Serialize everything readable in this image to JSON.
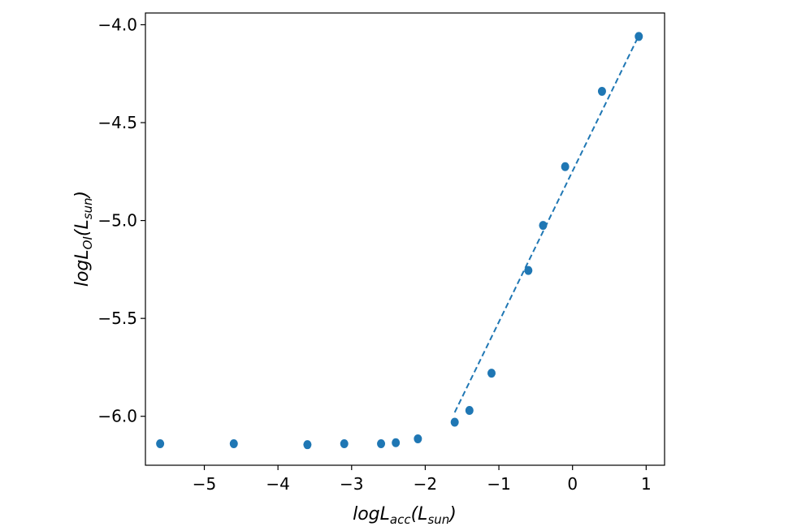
{
  "chart_data": {
    "type": "scatter",
    "xlabel": {
      "base": "logL",
      "sub": "acc",
      "tail": "(L",
      "sub2": "sun",
      "end": ")"
    },
    "ylabel": {
      "base": "logL",
      "sub": "OI",
      "tail": "(L",
      "sub2": "sun",
      "end": ")"
    },
    "xlim": [
      -5.8,
      1.25
    ],
    "ylim": [
      -6.25,
      -3.94
    ],
    "xticks": [
      -5,
      -4,
      -3,
      -2,
      -1,
      0,
      1
    ],
    "xtick_labels": [
      "−5",
      "−4",
      "−3",
      "−2",
      "−1",
      "0",
      "1"
    ],
    "yticks": [
      -4.0,
      -4.5,
      -5.0,
      -5.5,
      -6.0
    ],
    "ytick_labels": [
      "−4.0",
      "−4.5",
      "−5.0",
      "−5.5",
      "−6.0"
    ],
    "grid": false,
    "color": "#1f77b4",
    "series": [
      {
        "type": "scatter",
        "x": [
          -5.6,
          -4.6,
          -3.6,
          -3.1,
          -2.6,
          -2.4,
          -2.1,
          -1.6,
          -1.4,
          -1.1,
          -0.6,
          -0.4,
          -0.1,
          0.4,
          0.9
        ],
        "y": [
          -6.14,
          -6.14,
          -6.145,
          -6.14,
          -6.14,
          -6.135,
          -6.115,
          -6.03,
          -5.97,
          -5.78,
          -5.255,
          -5.025,
          -4.725,
          -4.34,
          -4.06
        ]
      },
      {
        "type": "line",
        "style": "dashed",
        "x": [
          -1.6,
          0.92
        ],
        "y": [
          -5.98,
          -4.04
        ]
      }
    ]
  }
}
